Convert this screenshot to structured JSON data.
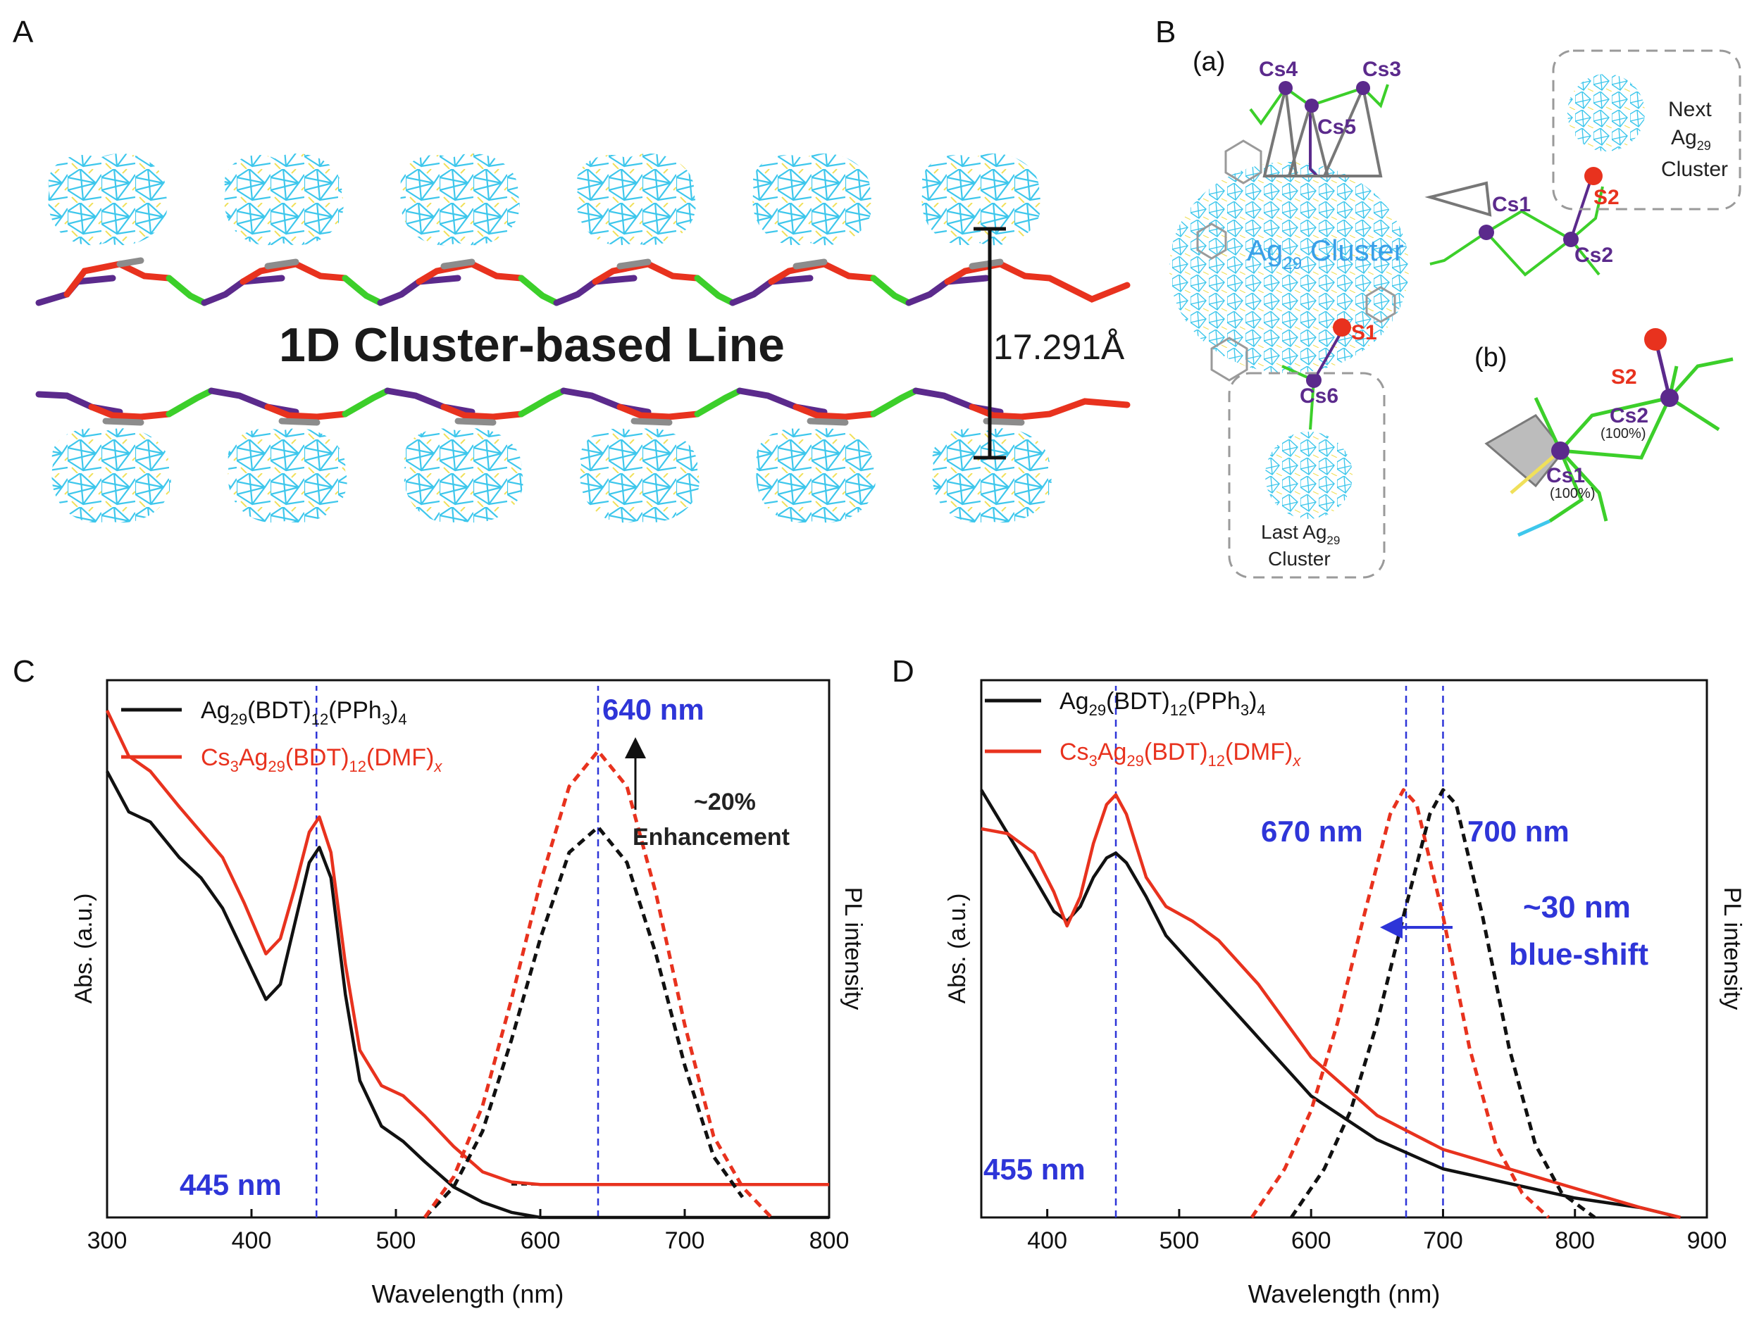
{
  "colors": {
    "silver_bond": "#3ec7ec",
    "sulfur": "#f0e05a",
    "cesium": "#5b2a8c",
    "oxygen": "#e8321e",
    "carbon": "#8c8c8c",
    "halide": "#3ccf2a",
    "label_blue": "#2e35d8",
    "black_series": "#111111",
    "red_series": "#e8321e"
  },
  "panel_a": {
    "letter": "A",
    "title": "1D Cluster-based Line",
    "distance": "17.291Å"
  },
  "panel_b": {
    "letter": "B",
    "sub_a": "(a)",
    "sub_b": "(b)",
    "atoms": {
      "cs1": "Cs1",
      "cs2": "Cs2",
      "cs3": "Cs3",
      "cs4": "Cs4",
      "cs5": "Cs5",
      "cs6": "Cs6",
      "s1": "S1",
      "s2": "S2",
      "s2_b": "S2",
      "cs1_b": "Cs1",
      "cs2_b": "Cs2",
      "occ1": "(100%)",
      "occ2": "(100%)"
    },
    "cluster_main": {
      "pre": "Ag",
      "sub": "29",
      "post": " Cluster"
    },
    "next_cluster": {
      "line1": "Next",
      "line2_pre": "Ag",
      "line2_sub": "29",
      "line3": "Cluster"
    },
    "last_cluster": {
      "line1_pre": "Last Ag",
      "line1_sub": "29",
      "line2": "Cluster"
    }
  },
  "panel_c": {
    "letter": "C",
    "legend": {
      "black": {
        "p1": "Ag",
        "s1": "29",
        "p2": "(BDT)",
        "s2": "12",
        "p3": "(PPh",
        "s3": "3",
        "p4": ")",
        "s4": "4"
      },
      "red": {
        "p1": "Cs",
        "s1": "3",
        "p2": "Ag",
        "s2": "29",
        "p3": "(BDT)",
        "s3": "12",
        "p4": "(DMF)",
        "s4": "x"
      }
    },
    "annotations": {
      "peak_abs": "445 nm",
      "peak_pl": "640 nm",
      "enh1": "~20%",
      "enh2": "Enhancement"
    }
  },
  "panel_d": {
    "letter": "D",
    "legend": {
      "black": {
        "p1": "Ag",
        "s1": "29",
        "p2": "(BDT)",
        "s2": "12",
        "p3": "(PPh",
        "s3": "3",
        "p4": ")",
        "s4": "4"
      },
      "red": {
        "p1": "Cs",
        "s1": "3",
        "p2": "Ag",
        "s2": "29",
        "p3": "(BDT)",
        "s3": "12",
        "p4": "(DMF)",
        "s4": "x"
      }
    },
    "annotations": {
      "peak_abs": "455 nm",
      "peak_red": "670 nm",
      "peak_black": "700 nm",
      "shift1": "~30 nm",
      "shift2": "blue-shift"
    }
  },
  "chart_data": [
    {
      "type": "line",
      "panel": "C",
      "xlabel": "Wavelength (nm)",
      "ylabel": "Abs. (a.u.)",
      "ylabel_right": "PL intensity",
      "xlim": [
        300,
        800
      ],
      "xticks": [
        300,
        400,
        500,
        600,
        700,
        800
      ],
      "series": [
        {
          "name": "Ag29(BDT)12(PPh3)4",
          "kind": "absorption",
          "color": "black",
          "x": [
            300,
            315,
            330,
            350,
            365,
            380,
            395,
            410,
            420,
            430,
            440,
            447,
            455,
            465,
            475,
            490,
            505,
            520,
            540,
            560,
            580,
            600,
            650,
            700,
            800
          ],
          "y": [
            0.88,
            0.8,
            0.78,
            0.71,
            0.67,
            0.61,
            0.52,
            0.43,
            0.46,
            0.58,
            0.7,
            0.73,
            0.67,
            0.44,
            0.27,
            0.18,
            0.15,
            0.11,
            0.06,
            0.03,
            0.01,
            0.0,
            0.0,
            0.0,
            0.0
          ]
        },
        {
          "name": "Cs3Ag29(BDT)12(DMF)x",
          "kind": "absorption",
          "color": "red",
          "x": [
            300,
            315,
            330,
            350,
            365,
            380,
            395,
            410,
            420,
            430,
            440,
            447,
            455,
            465,
            475,
            490,
            505,
            520,
            540,
            560,
            580,
            600,
            650,
            700,
            800
          ],
          "y": [
            1.0,
            0.91,
            0.88,
            0.81,
            0.76,
            0.71,
            0.62,
            0.52,
            0.55,
            0.65,
            0.76,
            0.79,
            0.72,
            0.5,
            0.33,
            0.26,
            0.24,
            0.2,
            0.14,
            0.09,
            0.07,
            0.065,
            0.065,
            0.065,
            0.065
          ]
        },
        {
          "name": "Ag29(BDT)12(PPh3)4",
          "kind": "PL",
          "color": "black",
          "dashed": true,
          "x": [
            520,
            540,
            560,
            580,
            600,
            620,
            640,
            660,
            680,
            700,
            720,
            740
          ],
          "y": [
            0.0,
            0.06,
            0.17,
            0.35,
            0.55,
            0.72,
            0.77,
            0.7,
            0.52,
            0.3,
            0.12,
            0.04
          ]
        },
        {
          "name": "Cs3Ag29(BDT)12(DMF)x",
          "kind": "PL",
          "color": "red",
          "dashed": true,
          "x": [
            520,
            540,
            560,
            580,
            600,
            620,
            640,
            660,
            680,
            700,
            720,
            740,
            760
          ],
          "y": [
            0.0,
            0.08,
            0.22,
            0.43,
            0.66,
            0.85,
            0.92,
            0.85,
            0.64,
            0.38,
            0.16,
            0.06,
            0.0
          ]
        }
      ]
    },
    {
      "type": "line",
      "panel": "D",
      "xlabel": "Wavelength (nm)",
      "ylabel": "Abs. (a.u.)",
      "ylabel_right": "PL intensity",
      "xlim": [
        350,
        900
      ],
      "xticks": [
        400,
        500,
        600,
        700,
        800,
        900
      ],
      "series": [
        {
          "name": "Ag29(BDT)12(PPh3)4",
          "kind": "absorption",
          "color": "black",
          "x": [
            350,
            370,
            390,
            405,
            415,
            425,
            435,
            445,
            452,
            460,
            475,
            490,
            510,
            530,
            560,
            600,
            650,
            700,
            750,
            800,
            850,
            880
          ],
          "y": [
            0.88,
            0.79,
            0.7,
            0.63,
            0.61,
            0.64,
            0.7,
            0.74,
            0.75,
            0.73,
            0.66,
            0.58,
            0.52,
            0.46,
            0.37,
            0.25,
            0.16,
            0.1,
            0.07,
            0.04,
            0.02,
            0.0
          ]
        },
        {
          "name": "Cs3Ag29(BDT)12(DMF)x",
          "kind": "absorption",
          "color": "red",
          "x": [
            350,
            370,
            390,
            405,
            415,
            425,
            435,
            445,
            452,
            460,
            475,
            490,
            510,
            530,
            560,
            600,
            650,
            700,
            750,
            800,
            850,
            880
          ],
          "y": [
            0.8,
            0.79,
            0.75,
            0.67,
            0.6,
            0.66,
            0.77,
            0.85,
            0.87,
            0.83,
            0.7,
            0.64,
            0.61,
            0.57,
            0.48,
            0.33,
            0.21,
            0.14,
            0.1,
            0.06,
            0.02,
            0.0
          ]
        },
        {
          "name": "Cs3Ag29(BDT)12(DMF)x",
          "kind": "PL",
          "color": "red",
          "dashed": true,
          "x": [
            555,
            580,
            600,
            620,
            640,
            660,
            670,
            680,
            700,
            720,
            740,
            760,
            780
          ],
          "y": [
            0.0,
            0.1,
            0.22,
            0.4,
            0.62,
            0.83,
            0.88,
            0.85,
            0.62,
            0.35,
            0.15,
            0.05,
            0.0
          ]
        },
        {
          "name": "Ag29(BDT)12(PPh3)4",
          "kind": "PL",
          "color": "black",
          "dashed": true,
          "x": [
            585,
            610,
            630,
            650,
            670,
            690,
            700,
            710,
            730,
            750,
            770,
            790,
            815
          ],
          "y": [
            0.0,
            0.1,
            0.22,
            0.4,
            0.62,
            0.83,
            0.88,
            0.85,
            0.62,
            0.35,
            0.15,
            0.05,
            0.0
          ]
        }
      ]
    }
  ]
}
